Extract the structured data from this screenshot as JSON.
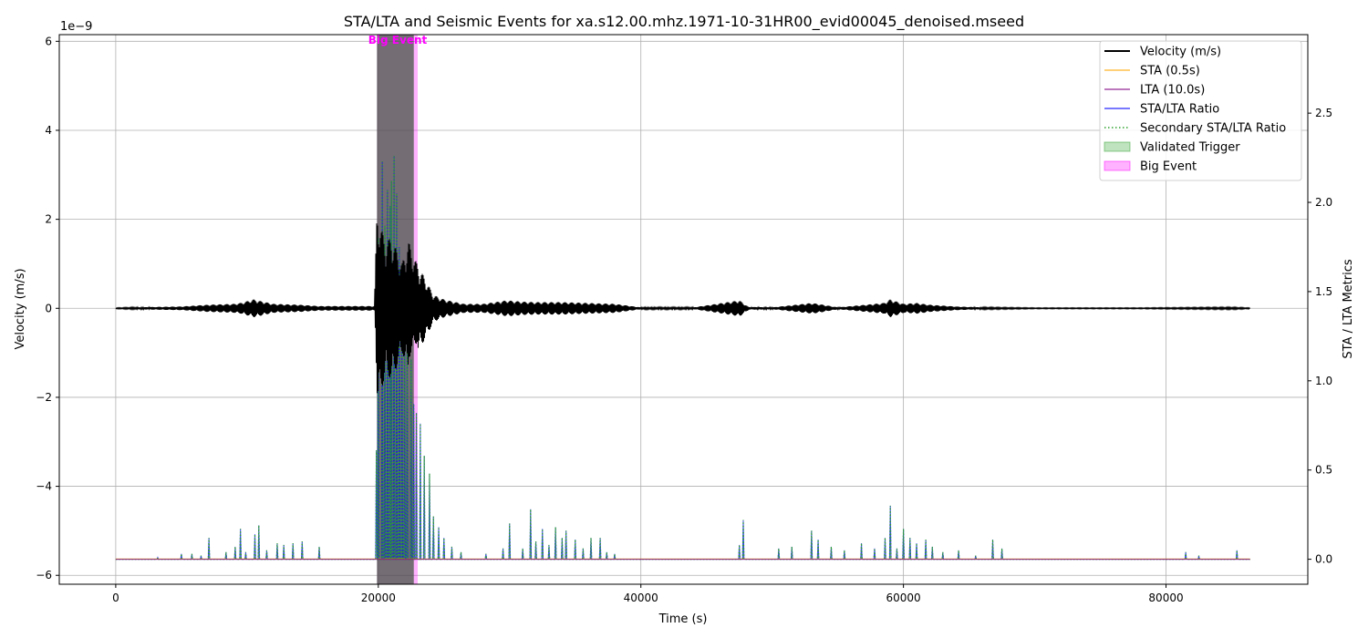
{
  "chart_data": {
    "type": "line",
    "title": "STA/LTA and Seismic Events for xa.s12.00.mhz.1971-10-31HR00_evid00045_denoised.mseed",
    "xlabel": "Time (s)",
    "ylabel_left": "Velocity (m/s)",
    "ylabel_right": "STA / LTA Metrics",
    "left_axis_offset_label": "1e−9",
    "xlim": [
      -4300,
      90800
    ],
    "ylim_left": [
      -6.2,
      6.15
    ],
    "ylim_right": [
      -0.14,
      2.94
    ],
    "x_ticks": [
      0,
      20000,
      40000,
      60000,
      80000
    ],
    "y_ticks_left": [
      -6,
      -4,
      -2,
      0,
      2,
      4,
      6
    ],
    "y_ticks_right": [
      0.0,
      0.5,
      1.0,
      1.5,
      2.0,
      2.5
    ],
    "grid": true,
    "legend_position": "top-right",
    "colors": {
      "velocity": "#000000",
      "sta": "#ffa500",
      "lta": "#800080",
      "ratio": "#0000ff",
      "secondary": "#2ca02c",
      "trigger": "#2ca02c",
      "big_event": "#ff00ff",
      "big_event_label": "#ff00ff"
    },
    "legend": [
      {
        "key": "velocity",
        "label": "Velocity (m/s)",
        "style": "line"
      },
      {
        "key": "sta",
        "label": "STA (0.5s)",
        "style": "line"
      },
      {
        "key": "lta",
        "label": "LTA (10.0s)",
        "style": "line"
      },
      {
        "key": "ratio",
        "label": "STA/LTA Ratio",
        "style": "line"
      },
      {
        "key": "secondary",
        "label": "Secondary STA/LTA Ratio",
        "style": "dotted"
      },
      {
        "key": "trigger",
        "label": "Validated Trigger",
        "style": "patch"
      },
      {
        "key": "big_event",
        "label": "Big Event",
        "style": "patch"
      }
    ],
    "big_event": {
      "x_start": 19900,
      "x_end": 23000,
      "label": "Big Event"
    },
    "validated_trigger": {
      "x_start": 19900,
      "x_end": 22700
    },
    "velocity_envelope": {
      "x": [
        0,
        3000,
        5000,
        7000,
        9000,
        9500,
        10500,
        12000,
        14000,
        15500,
        19700,
        19900,
        20200,
        20600,
        21000,
        21400,
        21800,
        22300,
        22800,
        23500,
        24200,
        25000,
        26500,
        28000,
        29800,
        31000,
        32000,
        34000,
        36000,
        38000,
        40000,
        44000,
        47500,
        48200,
        50000,
        53000,
        53500,
        55000,
        58500,
        59000,
        60000,
        61000,
        62000,
        64000,
        66000,
        70000,
        78000,
        85000,
        86400
      ],
      "amp": [
        0.01,
        0.03,
        0.04,
        0.08,
        0.1,
        0.12,
        0.2,
        0.1,
        0.08,
        0.05,
        0.05,
        2.3,
        1.8,
        1.5,
        1.6,
        1.3,
        1.0,
        1.5,
        1.1,
        0.7,
        0.3,
        0.2,
        0.1,
        0.1,
        0.18,
        0.15,
        0.14,
        0.14,
        0.12,
        0.1,
        0.02,
        0.02,
        0.18,
        0.03,
        0.02,
        0.12,
        0.1,
        0.02,
        0.12,
        0.2,
        0.1,
        0.12,
        0.08,
        0.04,
        0.02,
        0.01,
        0.01,
        0.02,
        0.01
      ]
    },
    "ratio_spikes": [
      {
        "x": 3200,
        "y": 0.01
      },
      {
        "x": 5000,
        "y": 0.03
      },
      {
        "x": 5800,
        "y": 0.03
      },
      {
        "x": 6500,
        "y": 0.02
      },
      {
        "x": 7100,
        "y": 0.12
      },
      {
        "x": 8400,
        "y": 0.04
      },
      {
        "x": 9100,
        "y": 0.07
      },
      {
        "x": 9500,
        "y": 0.17
      },
      {
        "x": 9900,
        "y": 0.04
      },
      {
        "x": 10600,
        "y": 0.14
      },
      {
        "x": 10900,
        "y": 0.19
      },
      {
        "x": 11500,
        "y": 0.05
      },
      {
        "x": 12300,
        "y": 0.09
      },
      {
        "x": 12800,
        "y": 0.08
      },
      {
        "x": 13500,
        "y": 0.09
      },
      {
        "x": 14200,
        "y": 0.1
      },
      {
        "x": 15500,
        "y": 0.07
      },
      {
        "x": 19850,
        "y": 0.61
      },
      {
        "x": 20000,
        "y": 1.8
      },
      {
        "x": 20300,
        "y": 2.23
      },
      {
        "x": 20500,
        "y": 1.87
      },
      {
        "x": 20700,
        "y": 2.07
      },
      {
        "x": 20900,
        "y": 1.98
      },
      {
        "x": 21000,
        "y": 2.12
      },
      {
        "x": 21200,
        "y": 2.26
      },
      {
        "x": 21400,
        "y": 2.05
      },
      {
        "x": 21600,
        "y": 1.75
      },
      {
        "x": 21800,
        "y": 1.65
      },
      {
        "x": 22000,
        "y": 1.45
      },
      {
        "x": 22200,
        "y": 1.27
      },
      {
        "x": 22500,
        "y": 1.12
      },
      {
        "x": 22700,
        "y": 0.87
      },
      {
        "x": 22900,
        "y": 0.82
      },
      {
        "x": 23200,
        "y": 0.76
      },
      {
        "x": 23500,
        "y": 0.58
      },
      {
        "x": 23900,
        "y": 0.48
      },
      {
        "x": 24200,
        "y": 0.24
      },
      {
        "x": 24600,
        "y": 0.18
      },
      {
        "x": 25000,
        "y": 0.12
      },
      {
        "x": 25600,
        "y": 0.07
      },
      {
        "x": 26300,
        "y": 0.04
      },
      {
        "x": 28200,
        "y": 0.03
      },
      {
        "x": 29500,
        "y": 0.06
      },
      {
        "x": 30000,
        "y": 0.2
      },
      {
        "x": 31000,
        "y": 0.06
      },
      {
        "x": 31600,
        "y": 0.28
      },
      {
        "x": 32000,
        "y": 0.1
      },
      {
        "x": 32500,
        "y": 0.17
      },
      {
        "x": 33000,
        "y": 0.08
      },
      {
        "x": 33500,
        "y": 0.18
      },
      {
        "x": 34000,
        "y": 0.12
      },
      {
        "x": 34300,
        "y": 0.16
      },
      {
        "x": 35000,
        "y": 0.11
      },
      {
        "x": 35600,
        "y": 0.06
      },
      {
        "x": 36200,
        "y": 0.12
      },
      {
        "x": 36900,
        "y": 0.12
      },
      {
        "x": 37400,
        "y": 0.04
      },
      {
        "x": 38000,
        "y": 0.03
      },
      {
        "x": 47500,
        "y": 0.08
      },
      {
        "x": 47800,
        "y": 0.22
      },
      {
        "x": 50500,
        "y": 0.06
      },
      {
        "x": 51500,
        "y": 0.07
      },
      {
        "x": 53000,
        "y": 0.16
      },
      {
        "x": 53500,
        "y": 0.11
      },
      {
        "x": 54500,
        "y": 0.07
      },
      {
        "x": 55500,
        "y": 0.05
      },
      {
        "x": 56800,
        "y": 0.09
      },
      {
        "x": 57800,
        "y": 0.06
      },
      {
        "x": 58600,
        "y": 0.12
      },
      {
        "x": 59000,
        "y": 0.3
      },
      {
        "x": 59500,
        "y": 0.06
      },
      {
        "x": 60000,
        "y": 0.17
      },
      {
        "x": 60500,
        "y": 0.12
      },
      {
        "x": 61000,
        "y": 0.09
      },
      {
        "x": 61700,
        "y": 0.11
      },
      {
        "x": 62200,
        "y": 0.07
      },
      {
        "x": 63000,
        "y": 0.04
      },
      {
        "x": 64200,
        "y": 0.05
      },
      {
        "x": 65500,
        "y": 0.02
      },
      {
        "x": 66800,
        "y": 0.11
      },
      {
        "x": 67500,
        "y": 0.06
      },
      {
        "x": 81500,
        "y": 0.04
      },
      {
        "x": 82500,
        "y": 0.02
      },
      {
        "x": 85400,
        "y": 0.05
      }
    ]
  }
}
